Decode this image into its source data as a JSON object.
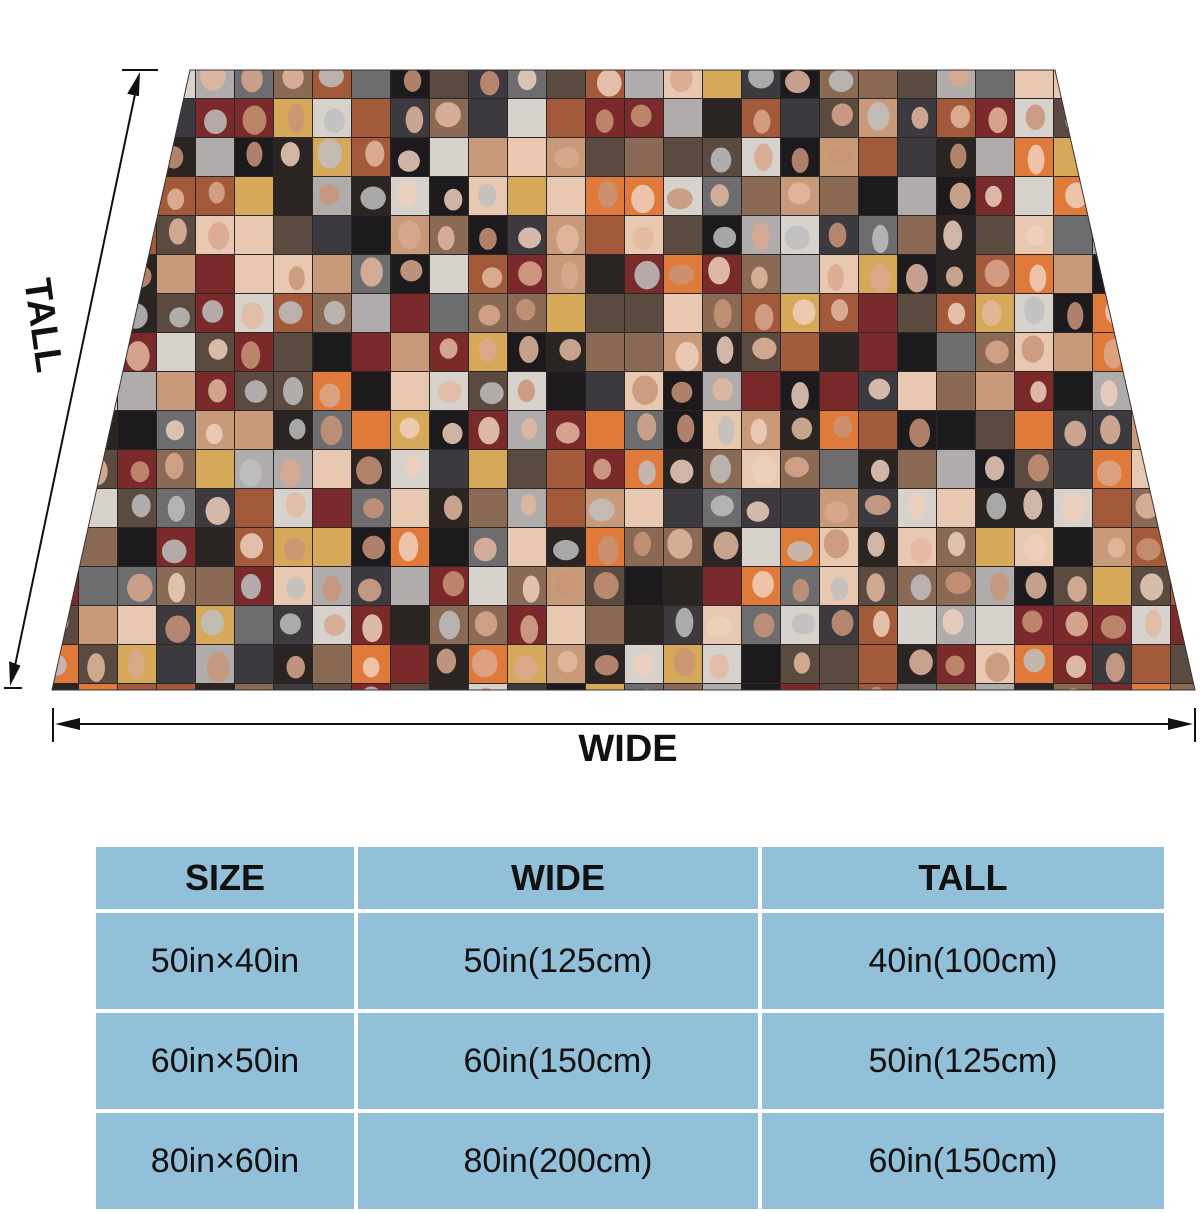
{
  "diagram": {
    "wide_label": "WIDE",
    "tall_label": "TALL"
  },
  "blanket": {
    "pattern": "photo-collage",
    "palette": [
      "#2a2422",
      "#5a4a40",
      "#8a6a55",
      "#c99a7a",
      "#e8c8b0",
      "#3c3a3e",
      "#6d6d70",
      "#b0acab",
      "#1c1a1c",
      "#d8d2cc",
      "#a35a3a",
      "#e07a3a",
      "#7a2a2a",
      "#d6a85a"
    ]
  },
  "table": {
    "headers": {
      "size": "SIZE",
      "wide": "WIDE",
      "tall": "TALL"
    },
    "rows": [
      {
        "size": "50in×40in",
        "wide": "50in(125cm)",
        "tall": "40in(100cm)"
      },
      {
        "size": "60in×50in",
        "wide": "60in(150cm)",
        "tall": "50in(125cm)"
      },
      {
        "size": "80in×60in",
        "wide": "80in(200cm)",
        "tall": "60in(150cm)"
      }
    ],
    "cell_color": "#93c0d9"
  }
}
